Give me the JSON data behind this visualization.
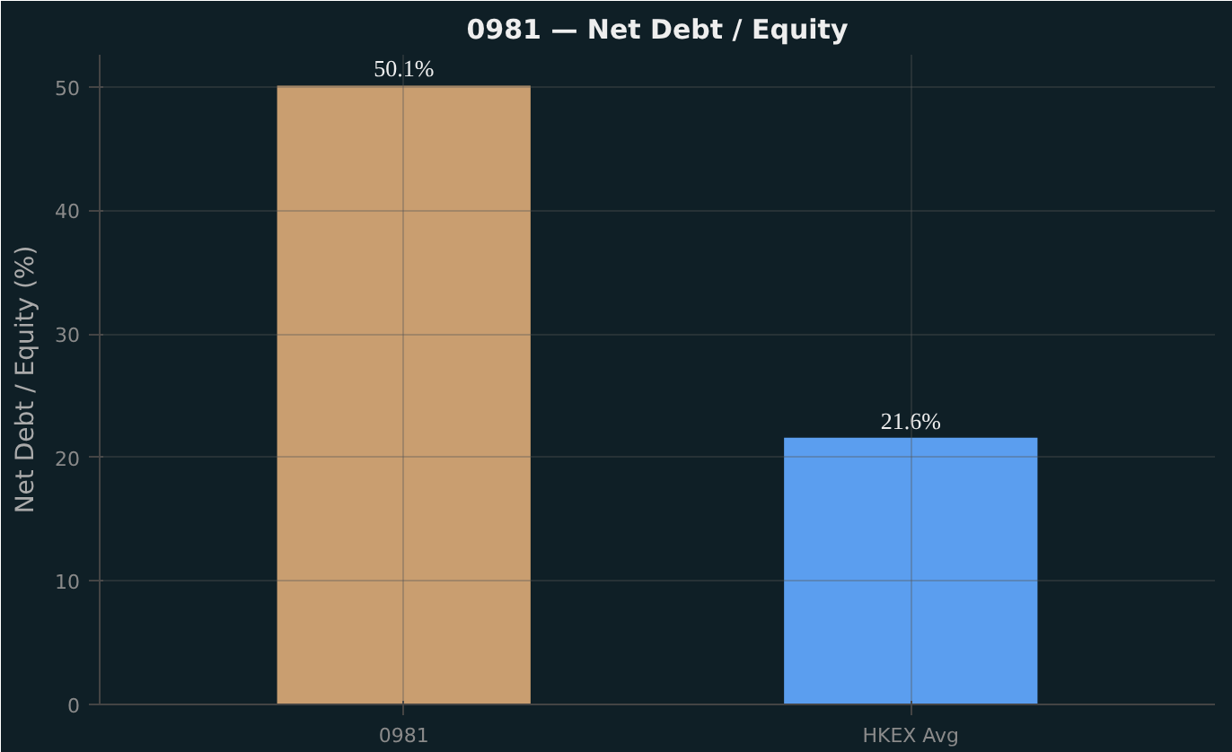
{
  "chart_data": {
    "type": "bar",
    "title": "0981 — Net Debt / Equity",
    "ylabel": "Net Debt / Equity (%)",
    "categories": [
      "0981",
      "HKEX Avg"
    ],
    "values": [
      50.1,
      21.6
    ],
    "colors": [
      "#d4a574",
      "#60a5fa"
    ],
    "value_labels": [
      "50.1%",
      "21.6%"
    ],
    "ylim": [
      0,
      52.6
    ],
    "yticks": [
      0,
      10,
      20,
      30,
      40,
      50
    ],
    "grid": true
  }
}
